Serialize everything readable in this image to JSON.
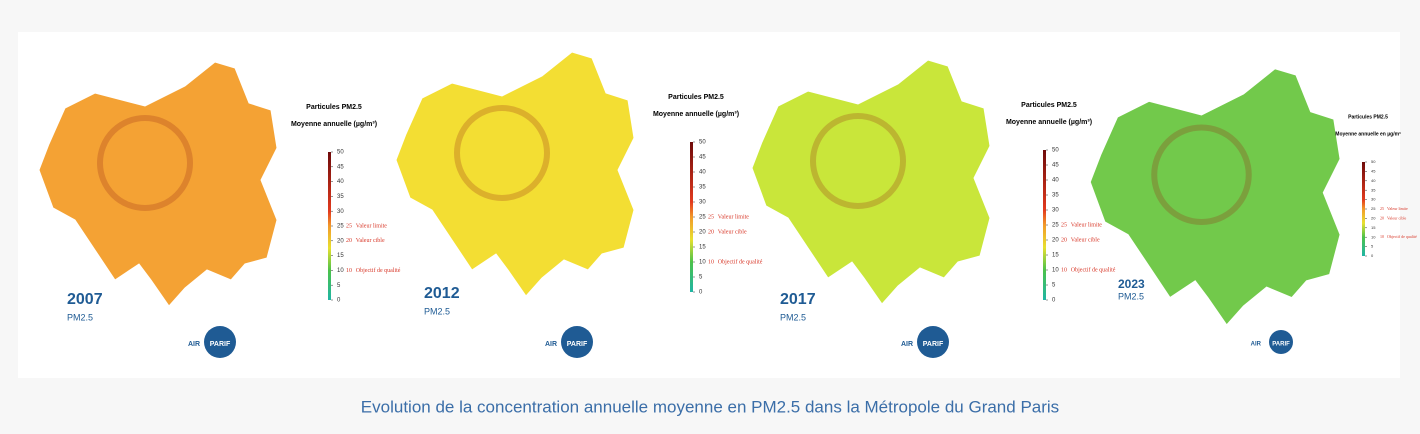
{
  "caption": "Evolution de la concentration annuelle moyenne en PM2.5 dans la Métropole du Grand Paris",
  "legend": {
    "ticks": [
      0,
      5,
      10,
      15,
      20,
      25,
      30,
      35,
      40,
      45,
      50
    ],
    "thresholds": [
      {
        "value": 25,
        "label": "Valeur limite"
      },
      {
        "value": 20,
        "label": "Valeur cible"
      },
      {
        "value": 10,
        "label": "Objectif de qualité"
      }
    ]
  },
  "logo": {
    "left": "AIR",
    "right": "PARIF"
  },
  "panels": [
    {
      "year": "2007",
      "pollutant": "PM2.5",
      "color": "#f4a234",
      "legend_title": "Particules PM2.5",
      "legend_subtitle": "Moyenne annuelle (µg/m³)"
    },
    {
      "year": "2012",
      "pollutant": "PM2.5",
      "color": "#f3de33",
      "legend_title": "Particules PM2.5",
      "legend_subtitle": "Moyenne annuelle (µg/m³)"
    },
    {
      "year": "2017",
      "pollutant": "PM2.5",
      "color": "#c9e63a",
      "legend_title": "Particules PM2.5",
      "legend_subtitle": "Moyenne annuelle (µg/m³)"
    },
    {
      "year": "2023",
      "pollutant": "PM2.5",
      "color": "#72c94b",
      "legend_title": "Particules PM2.5",
      "legend_subtitle": "Moyenne annuelle en µg/m³"
    }
  ]
}
